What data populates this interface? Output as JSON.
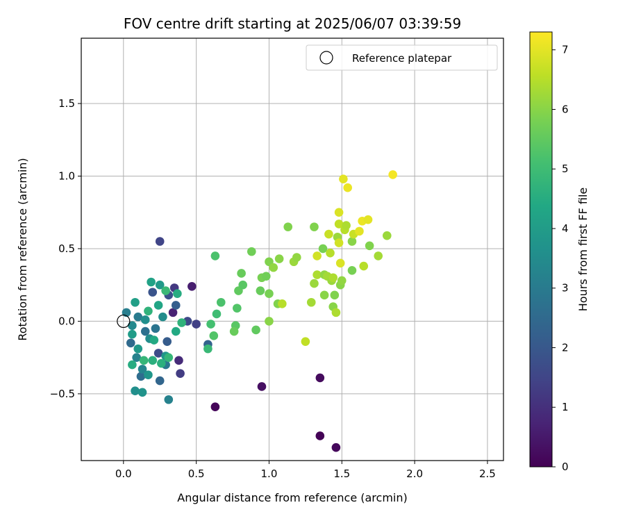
{
  "chart_data": {
    "type": "scatter",
    "title": "FOV centre drift starting at 2025/06/07 03:39:59",
    "xlabel": "Angular distance from reference (arcmin)",
    "ylabel": "Rotation from reference (arcmin)",
    "xlim": [
      -0.29,
      2.61
    ],
    "ylim": [
      -0.96,
      1.95
    ],
    "xticks": [
      0.0,
      0.5,
      1.0,
      1.5,
      2.0,
      2.5
    ],
    "xtick_labels": [
      "0.0",
      "0.5",
      "1.0",
      "1.5",
      "2.0",
      "2.5"
    ],
    "yticks": [
      -0.5,
      0.0,
      0.5,
      1.0,
      1.5
    ],
    "ytick_labels": [
      "−0.5",
      "0.0",
      "0.5",
      "1.0",
      "1.5"
    ],
    "grid": true,
    "legend": {
      "position": "top-right",
      "entries": [
        "Reference platepar"
      ]
    },
    "reference_point": {
      "x": 0.0,
      "y": 0.0
    },
    "colorbar": {
      "label": "Hours from first FF file",
      "range": [
        0,
        7.3
      ],
      "ticks": [
        0,
        1,
        2,
        3,
        4,
        5,
        6,
        7
      ],
      "tick_labels": [
        "0",
        "1",
        "2",
        "3",
        "4",
        "5",
        "6",
        "7"
      ],
      "colormap": "viridis"
    },
    "points": [
      {
        "x": 0.63,
        "y": -0.59,
        "c": 0.1
      },
      {
        "x": 1.35,
        "y": -0.79,
        "c": 0.05
      },
      {
        "x": 1.46,
        "y": -0.87,
        "c": 0.15
      },
      {
        "x": 1.35,
        "y": -0.39,
        "c": 0.2
      },
      {
        "x": 0.95,
        "y": -0.45,
        "c": 0.3
      },
      {
        "x": 0.47,
        "y": 0.24,
        "c": 0.6
      },
      {
        "x": 0.34,
        "y": 0.06,
        "c": 0.7
      },
      {
        "x": 0.38,
        "y": -0.27,
        "c": 0.9
      },
      {
        "x": 0.25,
        "y": 0.55,
        "c": 1.5
      },
      {
        "x": 0.39,
        "y": -0.36,
        "c": 1.3
      },
      {
        "x": 0.44,
        "y": 0.0,
        "c": 1.6
      },
      {
        "x": 0.5,
        "y": -0.02,
        "c": 1.4
      },
      {
        "x": 0.35,
        "y": 0.23,
        "c": 1.2
      },
      {
        "x": 0.31,
        "y": 0.18,
        "c": 1.8
      },
      {
        "x": 0.3,
        "y": -0.14,
        "c": 2.1
      },
      {
        "x": 0.58,
        "y": -0.16,
        "c": 2.3
      },
      {
        "x": 0.25,
        "y": -0.41,
        "c": 2.4
      },
      {
        "x": 0.12,
        "y": -0.38,
        "c": 2.6
      },
      {
        "x": 0.2,
        "y": 0.2,
        "c": 1.9
      },
      {
        "x": 0.36,
        "y": 0.11,
        "c": 2.2
      },
      {
        "x": 0.24,
        "y": -0.22,
        "c": 1.7
      },
      {
        "x": 0.15,
        "y": -0.07,
        "c": 2.7
      },
      {
        "x": 0.05,
        "y": -0.15,
        "c": 2.5
      },
      {
        "x": 0.29,
        "y": -0.3,
        "c": 2.9
      },
      {
        "x": 0.1,
        "y": 0.03,
        "c": 3.0
      },
      {
        "x": 0.02,
        "y": 0.06,
        "c": 3.1
      },
      {
        "x": 0.31,
        "y": -0.54,
        "c": 3.2
      },
      {
        "x": 0.13,
        "y": -0.33,
        "c": 3.3
      },
      {
        "x": 0.06,
        "y": -0.03,
        "c": 3.4
      },
      {
        "x": 0.18,
        "y": -0.12,
        "c": 3.5
      },
      {
        "x": 0.22,
        "y": -0.05,
        "c": 2.8
      },
      {
        "x": 0.08,
        "y": -0.48,
        "c": 3.6
      },
      {
        "x": 0.13,
        "y": -0.49,
        "c": 3.7
      },
      {
        "x": 0.17,
        "y": -0.37,
        "c": 3.8
      },
      {
        "x": 0.09,
        "y": -0.25,
        "c": 3.2
      },
      {
        "x": 0.1,
        "y": -0.19,
        "c": 3.9
      },
      {
        "x": 0.06,
        "y": -0.09,
        "c": 4.0
      },
      {
        "x": 0.15,
        "y": 0.01,
        "c": 3.6
      },
      {
        "x": 0.08,
        "y": 0.13,
        "c": 4.1
      },
      {
        "x": 0.19,
        "y": 0.27,
        "c": 4.2
      },
      {
        "x": 0.25,
        "y": 0.25,
        "c": 3.9
      },
      {
        "x": 0.27,
        "y": 0.03,
        "c": 3.5
      },
      {
        "x": 0.24,
        "y": 0.11,
        "c": 4.3
      },
      {
        "x": 0.21,
        "y": -0.13,
        "c": 4.4
      },
      {
        "x": 0.29,
        "y": -0.24,
        "c": 3.8
      },
      {
        "x": 0.06,
        "y": -0.3,
        "c": 4.5
      },
      {
        "x": 0.26,
        "y": -0.29,
        "c": 4.6
      },
      {
        "x": 0.37,
        "y": 0.19,
        "c": 4.5
      },
      {
        "x": 0.17,
        "y": 0.07,
        "c": 4.7
      },
      {
        "x": 0.36,
        "y": -0.07,
        "c": 4.4
      },
      {
        "x": 0.14,
        "y": -0.27,
        "c": 4.8
      },
      {
        "x": 0.2,
        "y": -0.27,
        "c": 4.6
      },
      {
        "x": 0.58,
        "y": -0.19,
        "c": 4.9
      },
      {
        "x": 0.31,
        "y": -0.25,
        "c": 4.8
      },
      {
        "x": 0.29,
        "y": 0.21,
        "c": 4.9
      },
      {
        "x": 0.4,
        "y": -0.01,
        "c": 4.7
      },
      {
        "x": 0.63,
        "y": 0.45,
        "c": 5.2
      },
      {
        "x": 0.62,
        "y": -0.1,
        "c": 5.3
      },
      {
        "x": 0.67,
        "y": 0.13,
        "c": 5.2
      },
      {
        "x": 0.6,
        "y": -0.02,
        "c": 5.1
      },
      {
        "x": 0.64,
        "y": 0.05,
        "c": 5.0
      },
      {
        "x": 0.77,
        "y": -0.03,
        "c": 5.4
      },
      {
        "x": 0.76,
        "y": -0.07,
        "c": 5.6
      },
      {
        "x": 0.78,
        "y": 0.09,
        "c": 5.3
      },
      {
        "x": 0.79,
        "y": 0.21,
        "c": 5.5
      },
      {
        "x": 0.81,
        "y": 0.33,
        "c": 5.6
      },
      {
        "x": 0.82,
        "y": 0.25,
        "c": 5.4
      },
      {
        "x": 0.88,
        "y": 0.48,
        "c": 5.7
      },
      {
        "x": 0.91,
        "y": -0.06,
        "c": 5.5
      },
      {
        "x": 0.94,
        "y": 0.21,
        "c": 5.6
      },
      {
        "x": 0.95,
        "y": 0.3,
        "c": 5.8
      },
      {
        "x": 0.98,
        "y": 0.31,
        "c": 5.7
      },
      {
        "x": 1.0,
        "y": 0.41,
        "c": 5.9
      },
      {
        "x": 1.0,
        "y": 0.19,
        "c": 5.8
      },
      {
        "x": 1.0,
        "y": 0.0,
        "c": 6.0
      },
      {
        "x": 1.03,
        "y": 0.37,
        "c": 6.1
      },
      {
        "x": 1.07,
        "y": 0.43,
        "c": 6.0
      },
      {
        "x": 1.06,
        "y": 0.12,
        "c": 5.9
      },
      {
        "x": 1.09,
        "y": 0.12,
        "c": 6.5
      },
      {
        "x": 1.13,
        "y": 0.65,
        "c": 5.9
      },
      {
        "x": 1.17,
        "y": 0.41,
        "c": 6.2
      },
      {
        "x": 1.19,
        "y": 0.44,
        "c": 6.1
      },
      {
        "x": 1.25,
        "y": -0.14,
        "c": 6.6
      },
      {
        "x": 1.29,
        "y": 0.13,
        "c": 6.3
      },
      {
        "x": 1.31,
        "y": 0.65,
        "c": 5.9
      },
      {
        "x": 1.31,
        "y": 0.26,
        "c": 6.2
      },
      {
        "x": 1.33,
        "y": 0.32,
        "c": 6.4
      },
      {
        "x": 1.33,
        "y": 0.45,
        "c": 6.8
      },
      {
        "x": 1.37,
        "y": 0.5,
        "c": 5.8
      },
      {
        "x": 1.38,
        "y": 0.18,
        "c": 6.0
      },
      {
        "x": 1.38,
        "y": 0.32,
        "c": 6.1
      },
      {
        "x": 1.4,
        "y": 0.31,
        "c": 6.3
      },
      {
        "x": 1.41,
        "y": 0.6,
        "c": 6.7
      },
      {
        "x": 1.42,
        "y": 0.47,
        "c": 6.5
      },
      {
        "x": 1.43,
        "y": 0.28,
        "c": 6.2
      },
      {
        "x": 1.44,
        "y": 0.3,
        "c": 6.4
      },
      {
        "x": 1.44,
        "y": 0.1,
        "c": 6.0
      },
      {
        "x": 1.45,
        "y": 0.18,
        "c": 5.9
      },
      {
        "x": 1.46,
        "y": 0.06,
        "c": 6.4
      },
      {
        "x": 1.47,
        "y": 0.58,
        "c": 6.2
      },
      {
        "x": 1.48,
        "y": 0.67,
        "c": 6.6
      },
      {
        "x": 1.48,
        "y": 0.75,
        "c": 6.9
      },
      {
        "x": 1.48,
        "y": 0.54,
        "c": 6.8
      },
      {
        "x": 1.49,
        "y": 0.25,
        "c": 6.0
      },
      {
        "x": 1.49,
        "y": 0.4,
        "c": 6.9
      },
      {
        "x": 1.5,
        "y": 0.28,
        "c": 6.1
      },
      {
        "x": 1.51,
        "y": 0.98,
        "c": 7.0
      },
      {
        "x": 1.52,
        "y": 0.63,
        "c": 6.5
      },
      {
        "x": 1.53,
        "y": 0.66,
        "c": 6.4
      },
      {
        "x": 1.54,
        "y": 0.92,
        "c": 7.1
      },
      {
        "x": 1.57,
        "y": 0.35,
        "c": 5.8
      },
      {
        "x": 1.57,
        "y": 0.55,
        "c": 6.0
      },
      {
        "x": 1.58,
        "y": 0.6,
        "c": 6.7
      },
      {
        "x": 1.62,
        "y": 0.62,
        "c": 7.0
      },
      {
        "x": 1.64,
        "y": 0.69,
        "c": 7.1
      },
      {
        "x": 1.65,
        "y": 0.38,
        "c": 6.5
      },
      {
        "x": 1.68,
        "y": 0.7,
        "c": 7.0
      },
      {
        "x": 1.69,
        "y": 0.52,
        "c": 5.9
      },
      {
        "x": 1.75,
        "y": 0.45,
        "c": 6.3
      },
      {
        "x": 1.81,
        "y": 0.59,
        "c": 6.2
      },
      {
        "x": 1.85,
        "y": 1.01,
        "c": 7.2
      }
    ]
  }
}
